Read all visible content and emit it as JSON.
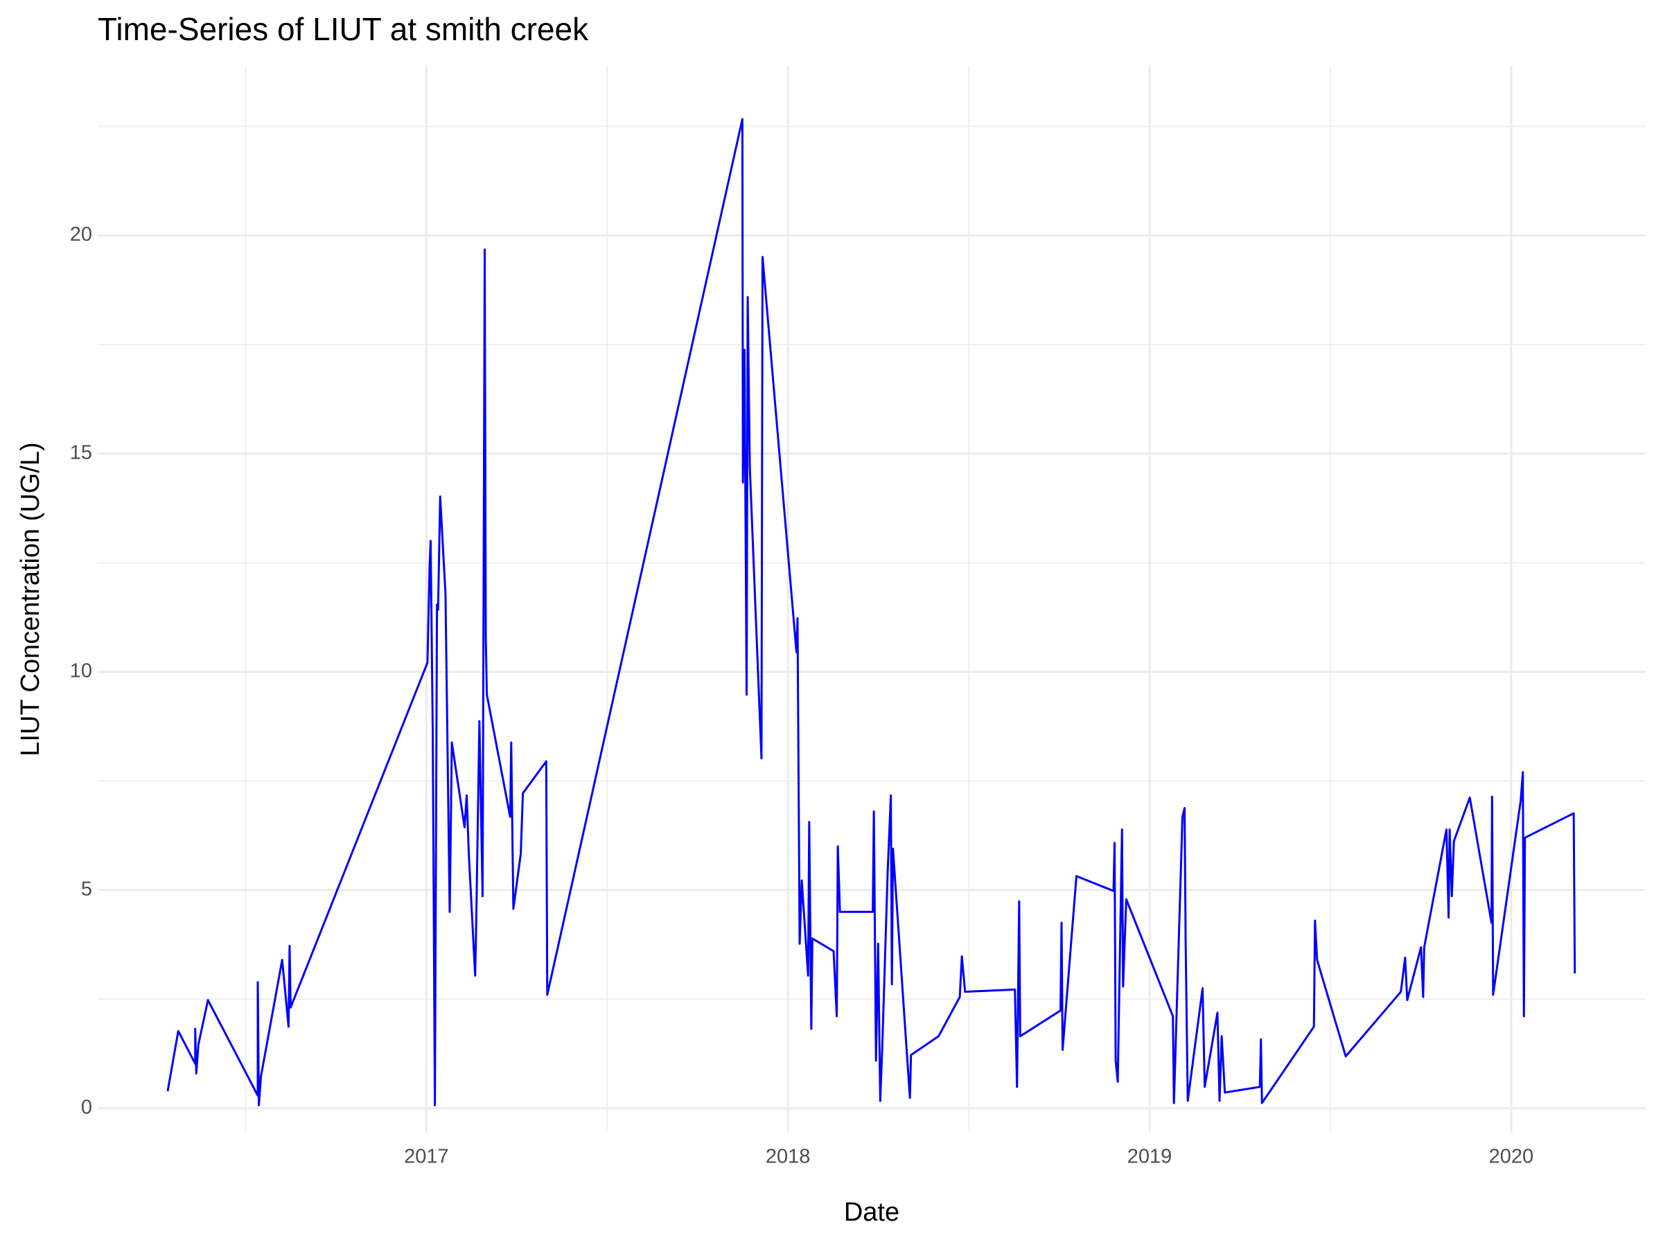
{
  "chart_data": {
    "type": "line",
    "title": "Time-Series of LIUT at smith creek",
    "x_label": "Date",
    "y_label": "LIUT Concentration (UG/L)",
    "x": [
      2016.2845,
      2016.3138,
      2016.3607,
      2016.3607,
      2016.3636,
      2016.3695,
      2016.3959,
      2016.5337,
      2016.5337,
      2016.5367,
      2016.5425,
      2016.6012,
      2016.6188,
      2016.6217,
      2016.6246,
      2017.0029,
      2017.0088,
      2017.0117,
      2017.0176,
      2017.0235,
      2017.0293,
      2017.0323,
      2017.0381,
      2017.0528,
      2017.0645,
      2017.0704,
      2017.1056,
      2017.1114,
      2017.1173,
      2017.1349,
      2017.1378,
      2017.1466,
      2017.1554,
      2017.1613,
      2017.1642,
      2017.1672,
      2017.2317,
      2017.2346,
      2017.2405,
      2017.261,
      2017.2669,
      2017.3314,
      2017.3343,
      2017.8739,
      2017.8754,
      2017.8798,
      2017.8856,
      2017.8886,
      2017.8944,
      2017.9267,
      2017.9296,
      2018.0235,
      2018.0264,
      2018.0323,
      2018.0381,
      2018.0557,
      2018.0587,
      2018.0645,
      2018.0674,
      2018.1261,
      2018.1349,
      2018.1378,
      2018.1437,
      2018.2346,
      2018.2375,
      2018.2434,
      2018.2493,
      2018.2551,
      2018.261,
      2018.2757,
      2018.2845,
      2018.2874,
      2018.2903,
      2018.3372,
      2018.3402,
      2018.4164,
      2018.4751,
      2018.4809,
      2018.4897,
      2018.6276,
      2018.6334,
      2018.6393,
      2018.6422,
      2018.7537,
      2018.7566,
      2018.7595,
      2018.7977,
      2018.9003,
      2018.9032,
      2018.9062,
      2018.912,
      2018.9238,
      2018.9267,
      2018.9355,
      2019.0645,
      2019.0674,
      2019.0909,
      2019.0968,
      2019.0997,
      2019.1056,
      2019.1466,
      2019.1525,
      2019.1877,
      2019.1935,
      2019.1994,
      2019.2082,
      2019.305,
      2019.3079,
      2019.3109,
      2019.4545,
      2019.4575,
      2019.4633,
      2019.5425,
      2019.695,
      2019.7067,
      2019.7126,
      2019.7507,
      2019.7566,
      2019.7595,
      2019.8211,
      2019.827,
      2019.8299,
      2019.8358,
      2019.8416,
      2019.8856,
      2019.9457,
      2019.9472,
      2019.9501,
      2020.0264,
      2020.0323,
      2020.0352,
      2020.0381,
      2020.173,
      2020.176
    ],
    "values": [
      0.39,
      1.77,
      1.02,
      1.82,
      0.8,
      1.46,
      2.48,
      0.29,
      2.89,
      0.07,
      0.73,
      3.4,
      1.87,
      3.72,
      2.31,
      10.21,
      12.39,
      13.0,
      8.63,
      0.07,
      11.54,
      11.42,
      14.02,
      11.79,
      4.5,
      8.38,
      6.44,
      7.17,
      5.83,
      3.04,
      4.25,
      8.87,
      4.86,
      19.68,
      10.81,
      9.48,
      6.68,
      8.38,
      4.57,
      5.83,
      7.22,
      7.95,
      2.6,
      22.67,
      14.34,
      17.38,
      9.48,
      18.59,
      14.7,
      8.02,
      19.51,
      10.45,
      11.23,
      3.77,
      5.22,
      3.04,
      6.56,
      1.82,
      3.89,
      3.6,
      2.11,
      6.0,
      4.5,
      4.5,
      6.8,
      1.09,
      3.77,
      0.17,
      1.46,
      5.42,
      7.17,
      2.84,
      5.95,
      0.24,
      1.22,
      1.65,
      2.55,
      3.48,
      2.67,
      2.72,
      0.49,
      4.74,
      1.65,
      2.24,
      4.25,
      1.34,
      5.32,
      4.98,
      6.08,
      1.09,
      0.61,
      6.39,
      2.79,
      4.79,
      2.11,
      0.12,
      6.68,
      6.88,
      3.86,
      0.17,
      2.75,
      0.49,
      2.19,
      0.17,
      1.65,
      0.36,
      0.49,
      1.58,
      0.12,
      1.87,
      4.3,
      3.4,
      1.19,
      2.67,
      3.45,
      2.48,
      3.69,
      2.55,
      3.69,
      6.39,
      4.37,
      6.39,
      4.86,
      6.12,
      7.12,
      4.25,
      7.14,
      2.6,
      7.05,
      7.7,
      2.11,
      6.2,
      6.76,
      3.09
    ],
    "color": "#0000ff",
    "xlim": [
      2016.091,
      2020.372
    ],
    "xticks": [
      2017,
      2018,
      2019,
      2020
    ],
    "ylim": [
      -0.56,
      23.89
    ],
    "yticks": [
      0,
      5,
      10,
      15,
      20
    ],
    "grid": true
  }
}
